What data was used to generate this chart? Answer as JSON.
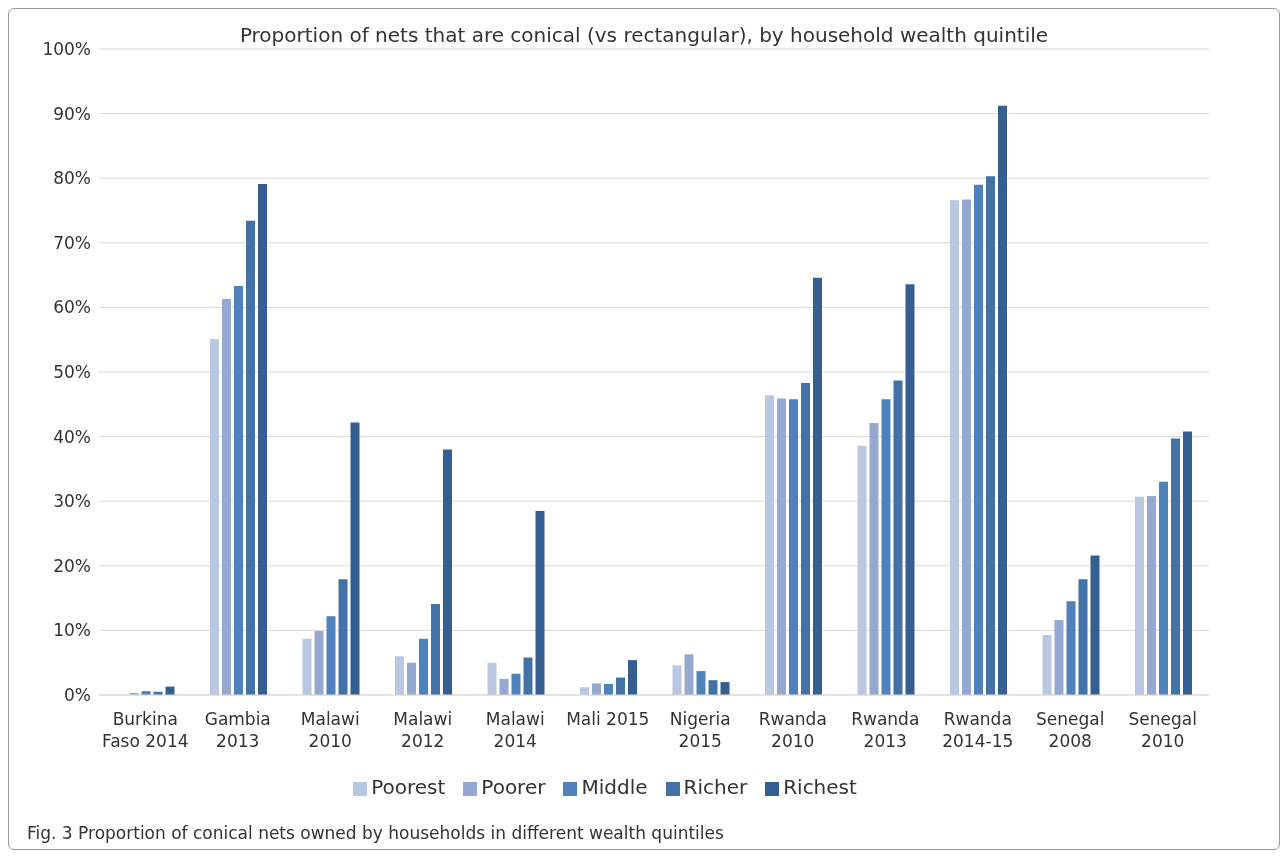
{
  "chart_data": {
    "type": "bar",
    "title": "Proportion of nets that are conical (vs rectangular), by household wealth quintile",
    "categories": [
      "Burkina\nFaso 2014",
      "Gambia\n2013",
      "Malawi\n2010",
      "Malawi\n2012",
      "Malawi\n2014",
      "Mali 2015",
      "Nigeria\n2015",
      "Rwanda\n2010",
      "Rwanda\n2013",
      "Rwanda\n2014-15",
      "Senegal\n2008",
      "Senegal\n2010"
    ],
    "series": [
      {
        "name": "Poorest",
        "color": "#b9c7e0",
        "values": [
          null,
          55.1,
          8.7,
          6.0,
          5.0,
          1.2,
          4.6,
          46.4,
          38.6,
          76.6,
          9.3,
          30.7
        ]
      },
      {
        "name": "Poorer",
        "color": "#95a9d0",
        "values": [
          0.3,
          61.3,
          9.9,
          5.0,
          2.5,
          1.8,
          6.3,
          45.9,
          42.1,
          76.7,
          11.6,
          30.8
        ]
      },
      {
        "name": "Middle",
        "color": "#4f81bd",
        "values": [
          0.6,
          63.3,
          12.2,
          8.7,
          3.3,
          1.7,
          3.7,
          45.8,
          45.8,
          79.0,
          14.5,
          33.0
        ]
      },
      {
        "name": "Richer",
        "color": "#4272a6",
        "values": [
          0.5,
          73.4,
          17.9,
          14.1,
          5.8,
          2.7,
          2.3,
          48.3,
          48.7,
          80.3,
          17.9,
          39.7
        ]
      },
      {
        "name": "Richest",
        "color": "#365f91",
        "values": [
          1.3,
          79.1,
          42.2,
          38.0,
          28.5,
          5.4,
          2.0,
          64.6,
          63.6,
          91.2,
          21.6,
          40.8
        ]
      }
    ],
    "ylim": [
      0,
      100
    ],
    "yticks": [
      {
        "value": 0,
        "label": "0%"
      },
      {
        "value": 10,
        "label": "10%"
      },
      {
        "value": 20,
        "label": "20%"
      },
      {
        "value": 30,
        "label": "30%"
      },
      {
        "value": 40,
        "label": "40%"
      },
      {
        "value": 50,
        "label": "50%"
      },
      {
        "value": 60,
        "label": "60%"
      },
      {
        "value": 70,
        "label": "70%"
      },
      {
        "value": 80,
        "label": "80%"
      },
      {
        "value": 90,
        "label": "90%"
      },
      {
        "value": 100,
        "label": "100%"
      }
    ],
    "grid": "y",
    "legend": "bottom",
    "annotations": [
      "Fig. 3  Proportion of conical nets owned by households in different wealth quintiles"
    ]
  }
}
